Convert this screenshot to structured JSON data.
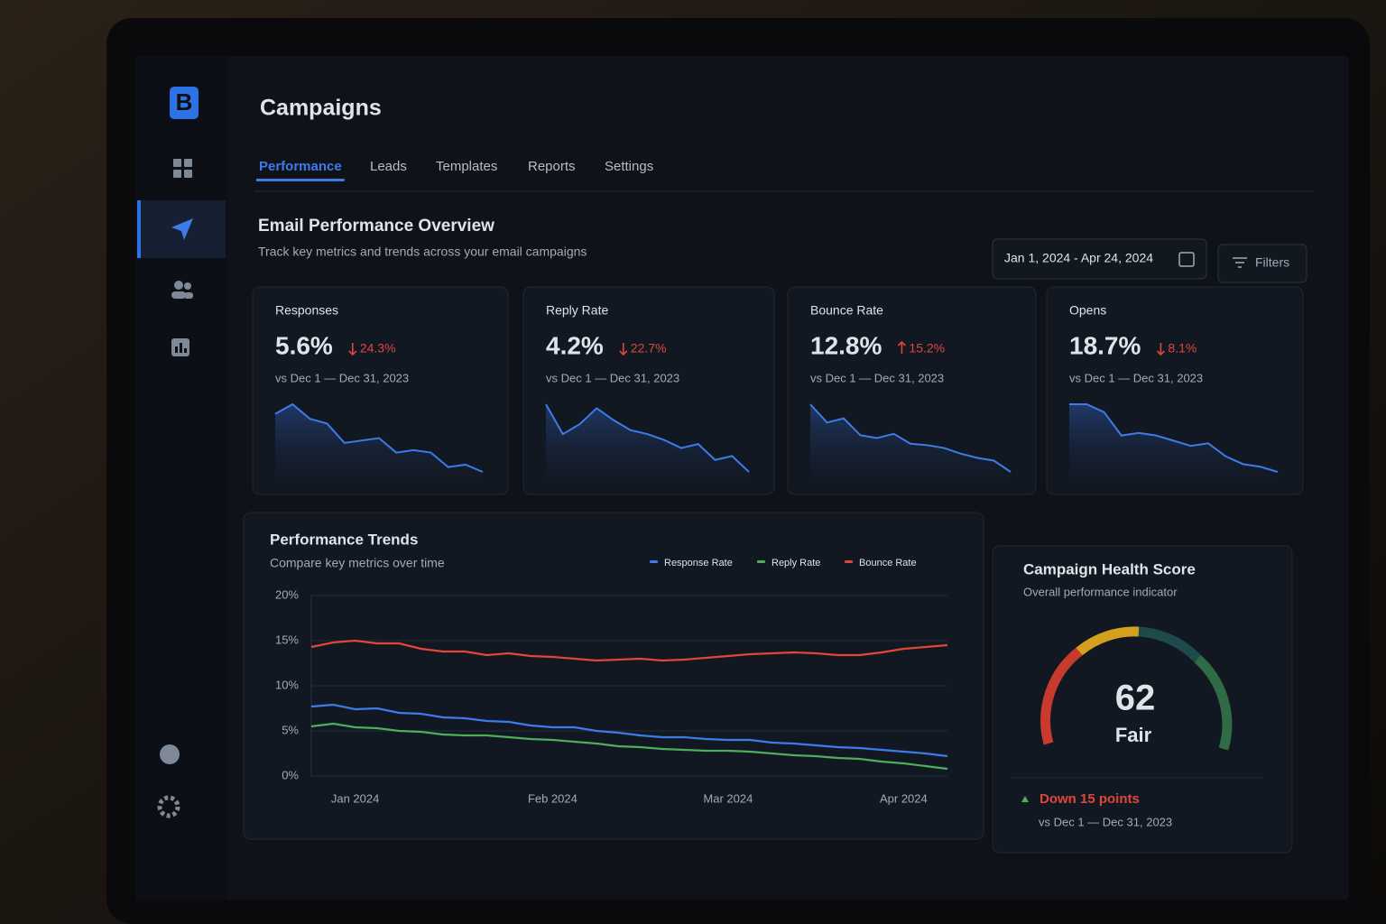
{
  "sidebar": {
    "logo": "B"
  },
  "header": {
    "title": "Campaigns",
    "tabs": [
      "Performance",
      "Leads",
      "Templates",
      "Reports",
      "Settings"
    ],
    "active_tab": 0
  },
  "overview": {
    "title": "Email Performance Overview",
    "subtitle": "Track key metrics and trends across your email campaigns",
    "date_range": "Jan 1, 2024 - Apr 24, 2024",
    "filters": "Filters"
  },
  "kpis": [
    {
      "label": "Responses",
      "value": "5.6%",
      "change": "24.3%",
      "direction": "down",
      "comparison": "vs Dec 1 — Dec 31, 2023",
      "spark": [
        62,
        66,
        60,
        58,
        50,
        51,
        52,
        46,
        47,
        46,
        40,
        41,
        38
      ]
    },
    {
      "label": "Reply Rate",
      "value": "4.2%",
      "change": "22.7%",
      "direction": "down",
      "comparison": "vs Dec 1 — Dec 31, 2023",
      "spark": [
        70,
        55,
        60,
        68,
        62,
        57,
        55,
        52,
        48,
        50,
        42,
        44,
        36
      ]
    },
    {
      "label": "Bounce Rate",
      "value": "12.8%",
      "change": "15.2%",
      "direction": "up",
      "comparison": "vs Dec 1 — Dec 31, 2023",
      "spark": [
        68,
        55,
        58,
        46,
        44,
        47,
        40,
        39,
        37,
        33,
        30,
        28,
        20
      ]
    },
    {
      "label": "Opens",
      "value": "18.7%",
      "change": "8.1%",
      "direction": "down",
      "comparison": "vs Dec 1 — Dec 31, 2023",
      "spark": [
        60,
        60,
        57,
        48,
        49,
        48,
        46,
        44,
        45,
        40,
        37,
        36,
        34
      ]
    }
  ],
  "chart_data": {
    "type": "line",
    "title": "Performance Trends",
    "subtitle": "Compare key metrics over time",
    "categories": [
      null,
      null,
      "Jan 2024",
      null,
      null,
      null,
      null,
      null,
      null,
      null,
      null,
      "Feb 2024",
      null,
      null,
      null,
      null,
      null,
      null,
      null,
      "Mar 2024",
      null,
      null,
      null,
      null,
      null,
      null,
      null,
      "Apr 2024",
      null,
      null
    ],
    "series": [
      {
        "name": "Response Rate",
        "color": "#3d7be8",
        "values": [
          7.7,
          7.9,
          7.4,
          7.5,
          7.0,
          6.9,
          6.5,
          6.4,
          6.1,
          6.0,
          5.6,
          5.4,
          5.4,
          5.0,
          4.8,
          4.5,
          4.3,
          4.3,
          4.1,
          4.0,
          4.0,
          3.7,
          3.6,
          3.4,
          3.2,
          3.1,
          2.9,
          2.7,
          2.5,
          2.2
        ]
      },
      {
        "name": "Reply Rate",
        "color": "#4caf5c",
        "values": [
          5.5,
          5.8,
          5.4,
          5.3,
          5.0,
          4.9,
          4.6,
          4.5,
          4.5,
          4.3,
          4.1,
          4.0,
          3.8,
          3.6,
          3.3,
          3.2,
          3.0,
          2.9,
          2.8,
          2.8,
          2.7,
          2.5,
          2.3,
          2.2,
          2.0,
          1.9,
          1.6,
          1.4,
          1.1,
          0.8
        ]
      },
      {
        "name": "Bounce Rate",
        "color": "#e0463a",
        "values": [
          14.3,
          14.8,
          15.0,
          14.7,
          14.7,
          14.1,
          13.8,
          13.8,
          13.4,
          13.6,
          13.3,
          13.2,
          13.0,
          12.8,
          12.9,
          13.0,
          12.8,
          12.9,
          13.1,
          13.3,
          13.5,
          13.6,
          13.7,
          13.6,
          13.4,
          13.4,
          13.7,
          14.1,
          14.3,
          14.5
        ]
      }
    ],
    "ylim": [
      0,
      20
    ],
    "yticks": [
      {
        "value": 0,
        "label": "0%"
      },
      {
        "value": 5,
        "label": "5%"
      },
      {
        "value": 10,
        "label": "10%"
      },
      {
        "value": 15,
        "label": "15%"
      },
      {
        "value": 20,
        "label": "20%"
      }
    ],
    "grid": true
  },
  "health": {
    "title": "Campaign Health Score",
    "subtitle": "Overall performance indicator",
    "score": 62,
    "rating": "Fair",
    "change": "Down 15 points",
    "comparison": "vs Dec 1 — Dec 31, 2023"
  }
}
